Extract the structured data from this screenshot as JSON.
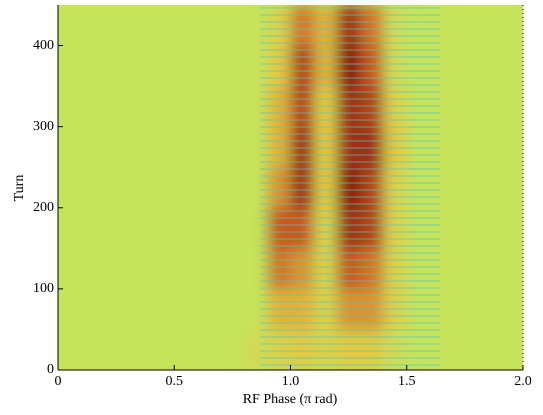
{
  "chart_data": {
    "type": "heatmap",
    "x_label": "RF Phase (π rad)",
    "y_label": "Turn",
    "x": [
      0,
      0.1,
      0.2,
      0.3,
      0.4,
      0.5,
      0.6,
      0.7,
      0.8,
      0.9,
      1.0,
      1.1,
      1.2,
      1.3,
      1.4,
      1.5,
      1.6,
      1.7,
      1.8,
      1.9,
      2.0
    ],
    "y": [
      0,
      50,
      100,
      150,
      200,
      250,
      300,
      350,
      400,
      450
    ],
    "z": [
      [
        0,
        0,
        0,
        0,
        0,
        0,
        0,
        0,
        0.1,
        0.2,
        0.3,
        0.2,
        0.3,
        0.3,
        0.1,
        0,
        0,
        0,
        0,
        0
      ],
      [
        0,
        0,
        0,
        0,
        0,
        0,
        0,
        0,
        0,
        0.4,
        0.4,
        0.2,
        0.5,
        0.5,
        0.2,
        0,
        0,
        0,
        0,
        0
      ],
      [
        0,
        0,
        0,
        0,
        0,
        0,
        0,
        0,
        0,
        0.6,
        0.5,
        0.2,
        0.7,
        0.6,
        0.2,
        0,
        0,
        0,
        0,
        0
      ],
      [
        0,
        0,
        0,
        0,
        0,
        0,
        0,
        0,
        0,
        0.7,
        0.7,
        0.2,
        0.9,
        0.8,
        0.2,
        0,
        0,
        0,
        0,
        0
      ],
      [
        0,
        0,
        0,
        0,
        0,
        0,
        0,
        0,
        0,
        0.5,
        0.9,
        0.3,
        1,
        0.8,
        0.2,
        0,
        0,
        0,
        0,
        0
      ],
      [
        0,
        0,
        0,
        0,
        0,
        0,
        0,
        0,
        0,
        0.4,
        0.9,
        0.3,
        0.9,
        0.9,
        0.3,
        0,
        0,
        0,
        0,
        0
      ],
      [
        0,
        0,
        0,
        0,
        0,
        0,
        0,
        0,
        0,
        0.4,
        0.8,
        0.3,
        0.9,
        0.8,
        0.2,
        0,
        0,
        0,
        0,
        0
      ],
      [
        0,
        0,
        0,
        0,
        0,
        0,
        0,
        0,
        0,
        0.3,
        0.8,
        0.4,
        1,
        0.7,
        0.1,
        0,
        0,
        0,
        0,
        0
      ],
      [
        0,
        0,
        0,
        0,
        0,
        0,
        0,
        0,
        0,
        0.2,
        0.6,
        0.4,
        0.9,
        0.6,
        0.1,
        0,
        0,
        0,
        0,
        0
      ]
    ],
    "zlim": [
      0,
      1
    ],
    "colormap": [
      "#c6e35c",
      "#e6c640",
      "#d0601e",
      "#8a1c10"
    ],
    "xlim": [
      0,
      2
    ],
    "ylim": [
      0,
      450
    ],
    "xticks": [
      0,
      0.5,
      {
        "value": 1,
        "label": "1.0"
      },
      1.5,
      {
        "value": 2,
        "label": "2.0"
      }
    ],
    "yticks": [
      0,
      100,
      200,
      300,
      400
    ]
  }
}
